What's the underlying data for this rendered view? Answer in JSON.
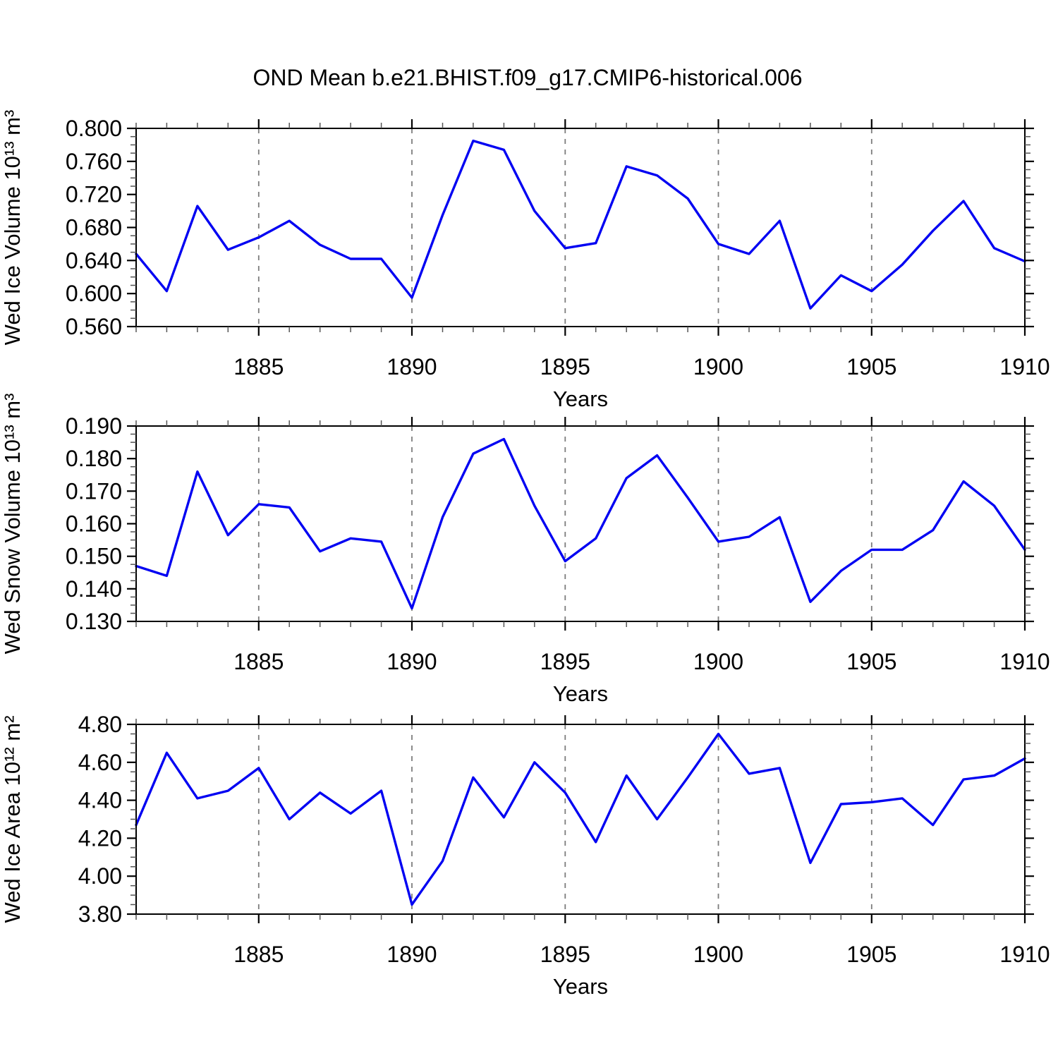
{
  "chart_data": {
    "type": "line",
    "title": "OND Mean b.e21.BHIST.f09_g17.CMIP6-historical.006",
    "xlabel": "Years",
    "x": [
      1881,
      1882,
      1883,
      1884,
      1885,
      1886,
      1887,
      1888,
      1889,
      1890,
      1891,
      1892,
      1893,
      1894,
      1895,
      1896,
      1897,
      1898,
      1899,
      1900,
      1901,
      1902,
      1903,
      1904,
      1905,
      1906,
      1907,
      1908,
      1909,
      1910
    ],
    "xlim": [
      1881,
      1910
    ],
    "xticks": [
      1885,
      1890,
      1895,
      1900,
      1905,
      1910
    ],
    "xtick_labels": [
      "1885",
      "1890",
      "1895",
      "1900",
      "1905",
      "1910"
    ],
    "x_minor_step": 1,
    "grid": {
      "vertical_dashed_at": [
        1885,
        1890,
        1895,
        1900,
        1905
      ],
      "horizontal": false
    },
    "legend": "none",
    "line_color": "#0202F2",
    "colors": {
      "frame": "#000000",
      "grid": "#7d7d7d",
      "text": "#000000"
    },
    "series": [
      {
        "name": "ice-volume",
        "ylabel": "Wed Ice Volume 10¹³ m³",
        "ylim": [
          0.56,
          0.8
        ],
        "yticks": [
          0.56,
          0.6,
          0.64,
          0.68,
          0.72,
          0.76,
          0.8
        ],
        "ytick_labels": [
          "0.560",
          "0.600",
          "0.640",
          "0.680",
          "0.720",
          "0.760",
          "0.800"
        ],
        "y_minor_step": 0.01,
        "ytick_decimals": 3,
        "values": [
          0.648,
          0.603,
          0.706,
          0.653,
          0.668,
          0.688,
          0.659,
          0.642,
          0.642,
          0.595,
          0.695,
          0.785,
          0.774,
          0.7,
          0.655,
          0.661,
          0.754,
          0.743,
          0.715,
          0.66,
          0.648,
          0.688,
          0.582,
          0.622,
          0.603,
          0.635,
          0.676,
          0.712,
          0.655,
          0.639
        ]
      },
      {
        "name": "snow-volume",
        "ylabel": "Wed Snow Volume 10¹³ m³",
        "ylim": [
          0.13,
          0.19
        ],
        "yticks": [
          0.13,
          0.14,
          0.15,
          0.16,
          0.17,
          0.18,
          0.19
        ],
        "ytick_labels": [
          "0.130",
          "0.140",
          "0.150",
          "0.160",
          "0.170",
          "0.180",
          "0.190"
        ],
        "y_minor_step": 0.0025,
        "ytick_decimals": 3,
        "values": [
          0.147,
          0.144,
          0.176,
          0.1565,
          0.166,
          0.165,
          0.1515,
          0.1555,
          0.1545,
          0.134,
          0.162,
          0.1815,
          0.186,
          0.1655,
          0.1485,
          0.1555,
          0.174,
          0.181,
          0.168,
          0.1545,
          0.156,
          0.162,
          0.136,
          0.1455,
          0.152,
          0.152,
          0.158,
          0.173,
          0.1655,
          0.152
        ]
      },
      {
        "name": "ice-area",
        "ylabel": "Wed Ice Area 10¹² m²",
        "ylim": [
          3.8,
          4.8
        ],
        "yticks": [
          3.8,
          4.0,
          4.2,
          4.4,
          4.6,
          4.8
        ],
        "ytick_labels": [
          "3.80",
          "4.00",
          "4.20",
          "4.40",
          "4.60",
          "4.80"
        ],
        "y_minor_step": 0.05,
        "ytick_decimals": 2,
        "values": [
          4.27,
          4.65,
          4.41,
          4.45,
          4.57,
          4.3,
          4.44,
          4.33,
          4.45,
          3.85,
          4.08,
          4.52,
          4.31,
          4.6,
          4.44,
          4.18,
          4.53,
          4.3,
          4.52,
          4.75,
          4.54,
          4.57,
          4.07,
          4.38,
          4.39,
          4.41,
          4.27,
          4.51,
          4.53,
          4.62
        ]
      }
    ]
  }
}
